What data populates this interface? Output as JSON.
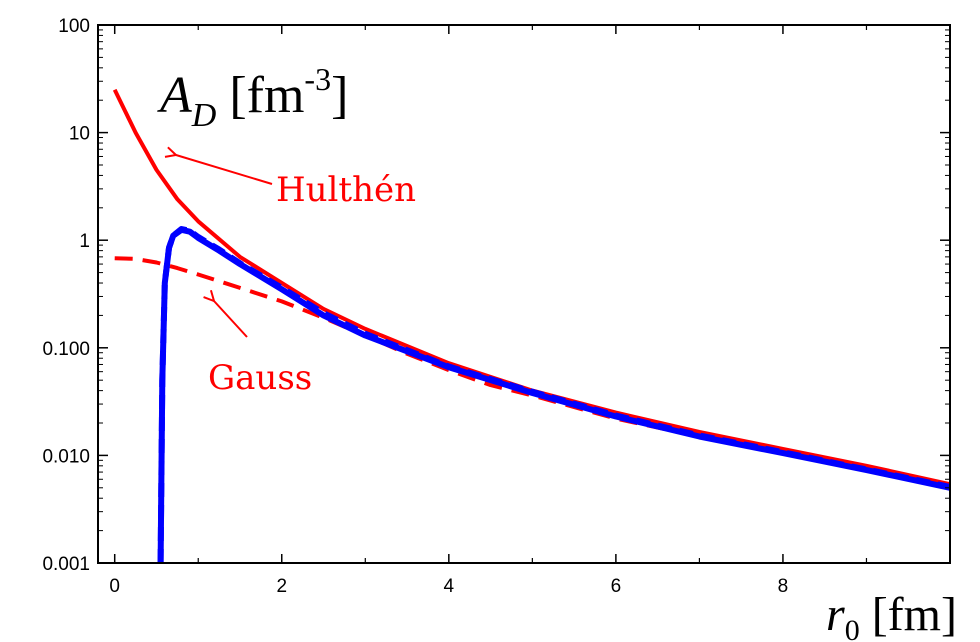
{
  "chart_data": {
    "type": "line",
    "y_scale": "log",
    "xlim": [
      -0.2,
      10
    ],
    "ylim": [
      0.001,
      100
    ],
    "x_ticks": [
      0,
      2,
      4,
      6,
      8
    ],
    "x_tick_labels": [
      "0",
      "2",
      "4",
      "6",
      "8"
    ],
    "y_ticks": [
      0.001,
      0.01,
      0.1,
      1,
      10,
      100
    ],
    "y_tick_labels": [
      "0.001",
      "0.010",
      "0.100",
      "1",
      "10",
      "100"
    ],
    "ylabel": {
      "main": "A",
      "sub": "D",
      "unit_open": " [fm",
      "sup": "-3",
      "unit_close": "]"
    },
    "xlabel": {
      "main": "r",
      "sub": "0",
      "unit": " [fm]"
    },
    "annotations": [
      {
        "text": "Hulthén",
        "color": "#ff0000"
      },
      {
        "text": "Gauss",
        "color": "#ff0000"
      }
    ],
    "grid": false,
    "series": [
      {
        "name": "Hulthén",
        "color": "#ff0000",
        "style": "solid",
        "x": [
          0,
          0.25,
          0.5,
          0.75,
          1,
          1.5,
          2,
          2.5,
          3,
          4,
          5,
          6,
          7,
          8,
          9,
          10
        ],
        "y": [
          25,
          10,
          4.5,
          2.4,
          1.5,
          0.7,
          0.4,
          0.23,
          0.15,
          0.072,
          0.04,
          0.025,
          0.0165,
          0.0115,
          0.008,
          0.0054
        ]
      },
      {
        "name": "Gauss",
        "color": "#ff0000",
        "style": "dashed",
        "x": [
          0,
          0.25,
          0.5,
          0.75,
          1,
          1.5,
          2,
          2.5,
          3,
          3.5,
          4,
          4.5,
          5,
          6,
          7,
          8,
          9,
          10
        ],
        "y": [
          0.68,
          0.67,
          0.62,
          0.55,
          0.48,
          0.36,
          0.27,
          0.19,
          0.13,
          0.088,
          0.062,
          0.045,
          0.036,
          0.022,
          0.015,
          0.0105,
          0.0075,
          0.0052
        ]
      },
      {
        "color": "#0000ff",
        "style": "solid",
        "x": [
          0.55,
          0.57,
          0.6,
          0.65,
          0.7,
          0.8,
          0.9,
          1,
          1.25,
          1.5,
          2,
          2.5,
          3,
          4,
          5,
          6,
          7,
          8,
          9,
          10
        ],
        "y": [
          0.001,
          0.05,
          0.4,
          0.85,
          1.1,
          1.25,
          1.2,
          1.05,
          0.8,
          0.6,
          0.35,
          0.2,
          0.13,
          0.066,
          0.038,
          0.023,
          0.015,
          0.0105,
          0.0073,
          0.005
        ]
      },
      {
        "color": "#0000ff",
        "style": "dashed",
        "x": [
          0.55,
          0.57,
          0.6,
          0.65,
          0.7,
          0.8,
          0.9,
          1,
          1.25,
          1.5,
          2,
          2.5,
          3,
          4,
          5,
          6,
          7,
          8,
          9,
          10
        ],
        "y": [
          0.001,
          0.05,
          0.4,
          0.85,
          1.1,
          1.27,
          1.22,
          1.07,
          0.82,
          0.61,
          0.36,
          0.21,
          0.135,
          0.067,
          0.039,
          0.0235,
          0.0153,
          0.0107,
          0.0074,
          0.0051
        ]
      }
    ]
  }
}
